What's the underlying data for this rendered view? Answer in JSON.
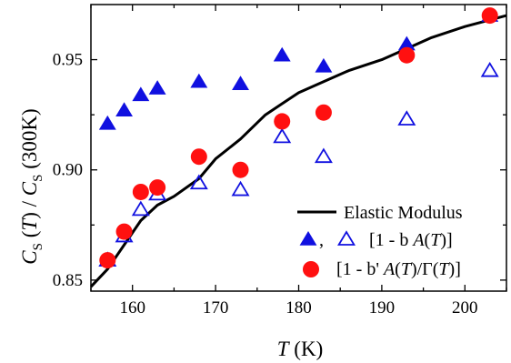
{
  "chart_data": {
    "type": "scatter",
    "xlabel": {
      "italic": "T",
      "rest": " (K)"
    },
    "ylabel": {
      "c1": "C",
      "s1": "S",
      "t": "T",
      "c2": "C",
      "s2": "S",
      "unit": "300K"
    },
    "xlim": [
      155,
      205
    ],
    "ylim": [
      0.845,
      0.975
    ],
    "xticks": [
      160,
      170,
      180,
      190,
      200
    ],
    "yticks": [
      0.85,
      0.9,
      0.95
    ],
    "ytick_labels": [
      "0.85",
      "0.90",
      "0.95"
    ],
    "grid": false,
    "legend": {
      "placement": "bottom-right",
      "elastic": "Elastic Modulus",
      "comma": ",",
      "triangle_label": {
        "pre": "[1 - b ",
        "a": "A",
        "t": "T",
        "post": ")]"
      },
      "circle_label": {
        "pre": "[1 - b' ",
        "a": "A",
        "t": "T",
        "mid": ")/Γ(",
        "t2": "T",
        "post": ")]"
      }
    },
    "colors": {
      "markers": "#1010e0",
      "circles": "#ff1010",
      "line": "#000000"
    },
    "series": [
      {
        "kind": "filled-triangle",
        "x": [
          157,
          159,
          161,
          163,
          168,
          173,
          178,
          183,
          193,
          203
        ],
        "y": [
          0.921,
          0.927,
          0.934,
          0.937,
          0.94,
          0.939,
          0.952,
          0.947,
          0.957,
          0.97
        ]
      },
      {
        "kind": "open-triangle",
        "x": [
          157,
          159,
          161,
          163,
          168,
          173,
          178,
          183,
          193,
          203
        ],
        "y": [
          0.859,
          0.87,
          0.882,
          0.889,
          0.894,
          0.891,
          0.915,
          0.906,
          0.923,
          0.945
        ]
      },
      {
        "kind": "circle",
        "x": [
          157,
          159,
          161,
          163,
          168,
          173,
          178,
          183,
          193,
          203
        ],
        "y": [
          0.859,
          0.872,
          0.89,
          0.892,
          0.906,
          0.9,
          0.922,
          0.926,
          0.952,
          0.97
        ]
      },
      {
        "kind": "line",
        "x": [
          155,
          157,
          159,
          161,
          163,
          165,
          168,
          170,
          173,
          176,
          178,
          180,
          183,
          186,
          190,
          193,
          196,
          200,
          205
        ],
        "y": [
          0.847,
          0.855,
          0.866,
          0.877,
          0.884,
          0.888,
          0.896,
          0.905,
          0.914,
          0.925,
          0.93,
          0.935,
          0.94,
          0.945,
          0.95,
          0.955,
          0.96,
          0.965,
          0.97
        ]
      }
    ]
  }
}
